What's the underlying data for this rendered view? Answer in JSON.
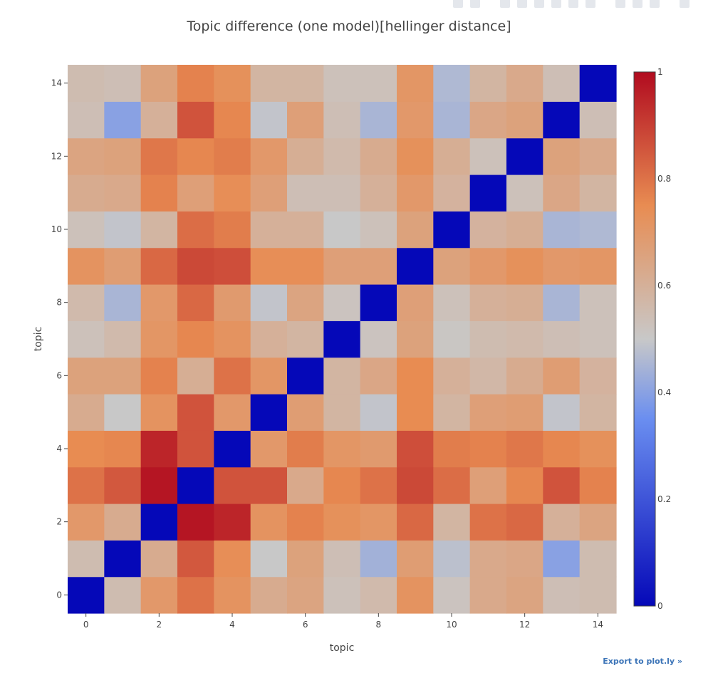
{
  "modebar": {
    "icons": [
      "camera-icon",
      "save-icon",
      "zoom-icon",
      "pan-icon",
      "zoom-in-icon",
      "zoom-out-icon",
      "autoscale-icon",
      "home-icon",
      "spike-lines-icon",
      "hover-closest-icon",
      "hover-compare-icon",
      "plotly-logo-icon"
    ]
  },
  "export_link": "Export to plot.ly »",
  "chart_data": {
    "type": "heatmap",
    "title": "Topic difference (one model)[hellinger distance]",
    "xlabel": "topic",
    "ylabel": "topic",
    "x": [
      0,
      1,
      2,
      3,
      4,
      5,
      6,
      7,
      8,
      9,
      10,
      11,
      12,
      13,
      14
    ],
    "y": [
      0,
      1,
      2,
      3,
      4,
      5,
      6,
      7,
      8,
      9,
      10,
      11,
      12,
      13,
      14
    ],
    "xlim": [
      -0.5,
      14.5
    ],
    "ylim": [
      -0.5,
      14.5
    ],
    "xticks": [
      0,
      2,
      4,
      6,
      8,
      10,
      12,
      14
    ],
    "yticks": [
      0,
      2,
      4,
      6,
      8,
      10,
      12,
      14
    ],
    "grid": false,
    "colorscale": [
      [
        0,
        "#0508b8"
      ],
      [
        0.35,
        "#6a8ef0"
      ],
      [
        0.5,
        "#c8c8c8"
      ],
      [
        0.75,
        "#e88c52"
      ],
      [
        1,
        "#b10b1f"
      ]
    ],
    "colorbar": {
      "range": [
        0,
        1
      ],
      "ticks": [
        0,
        0.2,
        0.4,
        0.6,
        0.8,
        1
      ],
      "ticklabels": [
        "0",
        "0.2",
        "0.4",
        "0.6",
        "0.8",
        "1"
      ]
    },
    "z": [
      [
        0.0,
        0.55,
        0.7,
        0.8,
        0.72,
        0.62,
        0.65,
        0.53,
        0.56,
        0.72,
        0.52,
        0.63,
        0.65,
        0.54,
        0.55
      ],
      [
        0.55,
        0.0,
        0.62,
        0.85,
        0.74,
        0.5,
        0.66,
        0.54,
        0.44,
        0.68,
        0.48,
        0.63,
        0.64,
        0.4,
        0.55
      ],
      [
        0.7,
        0.62,
        0.0,
        0.98,
        0.95,
        0.72,
        0.77,
        0.73,
        0.71,
        0.82,
        0.58,
        0.8,
        0.82,
        0.6,
        0.65
      ],
      [
        0.8,
        0.85,
        0.98,
        0.0,
        0.86,
        0.86,
        0.63,
        0.76,
        0.8,
        0.88,
        0.81,
        0.67,
        0.76,
        0.86,
        0.77
      ],
      [
        0.75,
        0.76,
        0.95,
        0.86,
        0.0,
        0.7,
        0.78,
        0.71,
        0.69,
        0.87,
        0.78,
        0.77,
        0.79,
        0.76,
        0.73
      ],
      [
        0.62,
        0.5,
        0.72,
        0.86,
        0.7,
        0.0,
        0.68,
        0.58,
        0.49,
        0.75,
        0.58,
        0.67,
        0.68,
        0.49,
        0.58
      ],
      [
        0.66,
        0.66,
        0.77,
        0.61,
        0.8,
        0.71,
        0.0,
        0.58,
        0.64,
        0.75,
        0.6,
        0.57,
        0.62,
        0.68,
        0.59
      ],
      [
        0.53,
        0.56,
        0.71,
        0.76,
        0.72,
        0.6,
        0.58,
        0.0,
        0.52,
        0.66,
        0.51,
        0.55,
        0.56,
        0.54,
        0.53
      ],
      [
        0.56,
        0.45,
        0.7,
        0.82,
        0.69,
        0.49,
        0.65,
        0.52,
        0.0,
        0.67,
        0.53,
        0.6,
        0.61,
        0.45,
        0.53
      ],
      [
        0.72,
        0.68,
        0.82,
        0.88,
        0.87,
        0.74,
        0.74,
        0.67,
        0.67,
        0.0,
        0.66,
        0.7,
        0.73,
        0.7,
        0.71
      ],
      [
        0.53,
        0.49,
        0.58,
        0.81,
        0.78,
        0.6,
        0.6,
        0.5,
        0.53,
        0.66,
        0.0,
        0.59,
        0.61,
        0.45,
        0.46
      ],
      [
        0.62,
        0.63,
        0.77,
        0.67,
        0.74,
        0.67,
        0.54,
        0.54,
        0.6,
        0.7,
        0.59,
        0.0,
        0.53,
        0.64,
        0.58
      ],
      [
        0.65,
        0.66,
        0.79,
        0.76,
        0.78,
        0.7,
        0.61,
        0.56,
        0.62,
        0.73,
        0.61,
        0.53,
        0.0,
        0.66,
        0.63
      ],
      [
        0.54,
        0.4,
        0.6,
        0.86,
        0.76,
        0.49,
        0.67,
        0.54,
        0.45,
        0.7,
        0.45,
        0.64,
        0.66,
        0.0,
        0.54
      ],
      [
        0.55,
        0.54,
        0.66,
        0.77,
        0.73,
        0.58,
        0.58,
        0.53,
        0.53,
        0.71,
        0.46,
        0.58,
        0.63,
        0.54,
        0.0
      ]
    ]
  }
}
